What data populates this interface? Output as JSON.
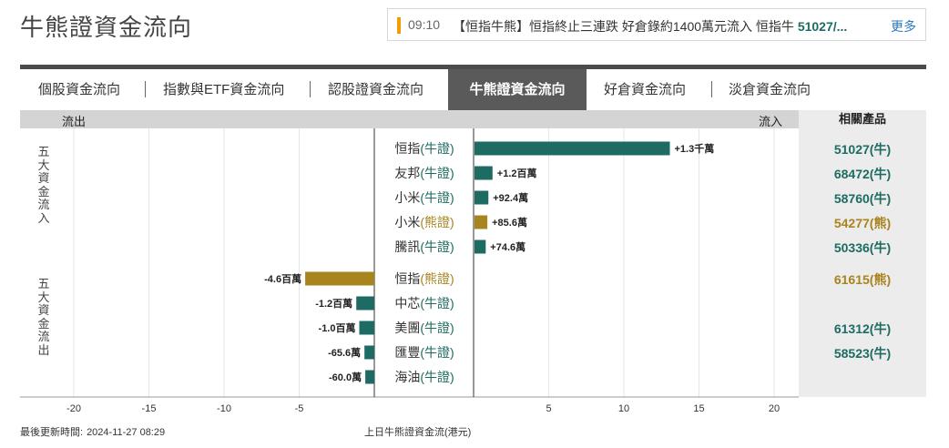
{
  "page_title": "牛熊證資金流向",
  "news": {
    "time": "09:10",
    "text": "【恒指牛熊】恒指終止三連跌 好倉錄約1400萬元流入 恒指牛",
    "highlight": "51027/...",
    "more_label": "更多"
  },
  "tabs": [
    {
      "label": "個股資金流向",
      "active": false
    },
    {
      "label": "指數與ETF資金流向",
      "active": false
    },
    {
      "label": "認股證資金流向",
      "active": false
    },
    {
      "label": "牛熊證資金流向",
      "active": true
    },
    {
      "label": "好倉資金流向",
      "active": false
    },
    {
      "label": "淡倉資金流向",
      "active": false
    }
  ],
  "header": {
    "outflow": "流出",
    "inflow": "流入",
    "products": "相關產品"
  },
  "group_labels": {
    "inflow_top5": "五大資金流入",
    "outflow_top5": "五大資金流出"
  },
  "colors": {
    "bull": "#1d6b62",
    "bear": "#a8841f",
    "grid": "#e6e6e6",
    "axis": "#333333"
  },
  "chart_data": {
    "type": "bar",
    "orientation": "horizontal",
    "xlim": [
      -22,
      22
    ],
    "x_ticks": [
      -20,
      -15,
      -10,
      -5,
      5,
      10,
      15,
      20
    ],
    "xlabel": "上日牛熊證資金流(港元)",
    "grid": true,
    "rows": [
      {
        "category": "恒指",
        "type": "(牛證)",
        "kind": "bull",
        "value": 13.0,
        "label": "+1.3千萬",
        "product": "51027(牛)"
      },
      {
        "category": "友邦",
        "type": "(牛證)",
        "kind": "bull",
        "value": 1.2,
        "label": "+1.2百萬",
        "product": "68472(牛)"
      },
      {
        "category": "小米",
        "type": "(牛證)",
        "kind": "bull",
        "value": 0.924,
        "label": "+92.4萬",
        "product": "58760(牛)"
      },
      {
        "category": "小米",
        "type": "(熊證)",
        "kind": "bear",
        "value": 0.856,
        "label": "+85.6萬",
        "product": "54277(熊)"
      },
      {
        "category": "騰訊",
        "type": "(牛證)",
        "kind": "bull",
        "value": 0.746,
        "label": "+74.6萬",
        "product": "50336(牛)"
      },
      {
        "category": "恒指",
        "type": "(熊證)",
        "kind": "bear",
        "value": -4.6,
        "label": "-4.6百萬",
        "product": "61615(熊)"
      },
      {
        "category": "中芯",
        "type": "(牛證)",
        "kind": "bull",
        "value": -1.2,
        "label": "-1.2百萬",
        "product": ""
      },
      {
        "category": "美團",
        "type": "(牛證)",
        "kind": "bull",
        "value": -1.0,
        "label": "-1.0百萬",
        "product": "61312(牛)"
      },
      {
        "category": "匯豐",
        "type": "(牛證)",
        "kind": "bull",
        "value": -0.656,
        "label": "-65.6萬",
        "product": "58523(牛)"
      },
      {
        "category": "海油",
        "type": "(牛證)",
        "kind": "bull",
        "value": -0.6,
        "label": "-60.0萬",
        "product": ""
      }
    ]
  },
  "footer": {
    "updated_label": "最後更新時間:",
    "updated_time": "2024-11-27 08:29"
  }
}
